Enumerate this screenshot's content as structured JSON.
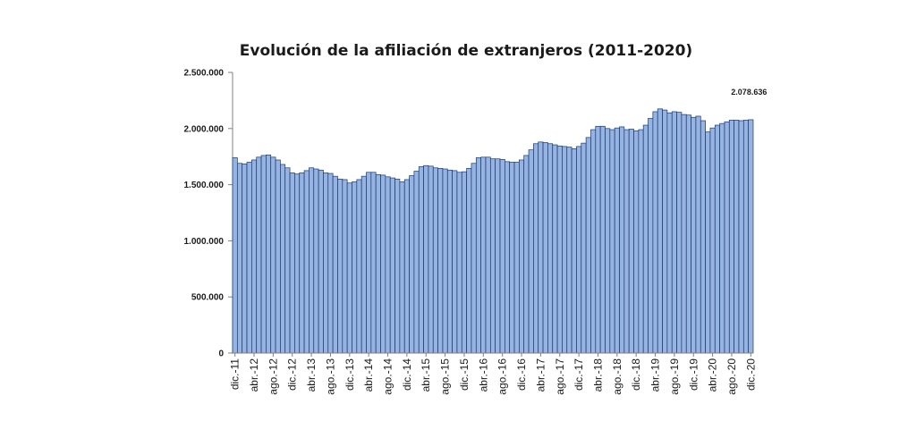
{
  "chart_data": {
    "type": "bar",
    "title": "Evolución de la afiliación de extranjeros (2011-2020)",
    "xlabel": "",
    "ylabel": "",
    "ylim": [
      0,
      2500000
    ],
    "yticks": [
      "0",
      "500.000",
      "1.000.000",
      "1.500.000",
      "2.000.000",
      "2.500.000"
    ],
    "grid": false,
    "legend": "none",
    "colors": {
      "bar_fill": "#95b3e3",
      "bar_stroke": "#1f3864",
      "axis": "#808080"
    },
    "x_tick_labels": [
      {
        "index": 0,
        "label": "dic.-11"
      },
      {
        "index": 4,
        "label": "abr.-12"
      },
      {
        "index": 8,
        "label": "ago.-12"
      },
      {
        "index": 12,
        "label": "dic.-12"
      },
      {
        "index": 16,
        "label": "abr.-13"
      },
      {
        "index": 20,
        "label": "ago.-13"
      },
      {
        "index": 24,
        "label": "dic.-13"
      },
      {
        "index": 28,
        "label": "abr.-14"
      },
      {
        "index": 32,
        "label": "ago.-14"
      },
      {
        "index": 36,
        "label": "dic.-14"
      },
      {
        "index": 40,
        "label": "abr.-15"
      },
      {
        "index": 44,
        "label": "ago.-15"
      },
      {
        "index": 48,
        "label": "dic.-15"
      },
      {
        "index": 52,
        "label": "abr.-16"
      },
      {
        "index": 56,
        "label": "ago.-16"
      },
      {
        "index": 60,
        "label": "dic.-16"
      },
      {
        "index": 64,
        "label": "abr.-17"
      },
      {
        "index": 68,
        "label": "ago.-17"
      },
      {
        "index": 72,
        "label": "dic.-17"
      },
      {
        "index": 76,
        "label": "abr.-18"
      },
      {
        "index": 80,
        "label": "ago.-18"
      },
      {
        "index": 84,
        "label": "dic.-18"
      },
      {
        "index": 88,
        "label": "abr.-19"
      },
      {
        "index": 92,
        "label": "ago.-19"
      },
      {
        "index": 96,
        "label": "dic.-19"
      },
      {
        "index": 100,
        "label": "abr.-20"
      },
      {
        "index": 104,
        "label": "ago.-20"
      },
      {
        "index": 108,
        "label": "dic.-20"
      }
    ],
    "values": [
      1740000,
      1690000,
      1685000,
      1700000,
      1720000,
      1745000,
      1760000,
      1765000,
      1745000,
      1720000,
      1680000,
      1650000,
      1605000,
      1595000,
      1605000,
      1625000,
      1650000,
      1640000,
      1630000,
      1605000,
      1600000,
      1575000,
      1550000,
      1545000,
      1515000,
      1525000,
      1545000,
      1575000,
      1610000,
      1610000,
      1590000,
      1585000,
      1570000,
      1560000,
      1550000,
      1525000,
      1545000,
      1580000,
      1620000,
      1660000,
      1670000,
      1665000,
      1650000,
      1645000,
      1640000,
      1630000,
      1625000,
      1610000,
      1615000,
      1645000,
      1690000,
      1740000,
      1745000,
      1745000,
      1730000,
      1730000,
      1725000,
      1705000,
      1700000,
      1700000,
      1720000,
      1760000,
      1810000,
      1865000,
      1880000,
      1875000,
      1865000,
      1855000,
      1845000,
      1840000,
      1835000,
      1820000,
      1840000,
      1870000,
      1920000,
      1990000,
      2020000,
      2020000,
      2000000,
      1990000,
      2005000,
      2015000,
      1990000,
      1995000,
      1980000,
      1990000,
      2030000,
      2090000,
      2150000,
      2175000,
      2165000,
      2140000,
      2150000,
      2145000,
      2125000,
      2120000,
      2100000,
      2110000,
      2070000,
      1970000,
      2005000,
      2030000,
      2045000,
      2060000,
      2075000,
      2075000,
      2070000,
      2075000,
      2078636
    ],
    "annotations": [
      {
        "index": 108,
        "text": "2.078.636"
      }
    ]
  }
}
